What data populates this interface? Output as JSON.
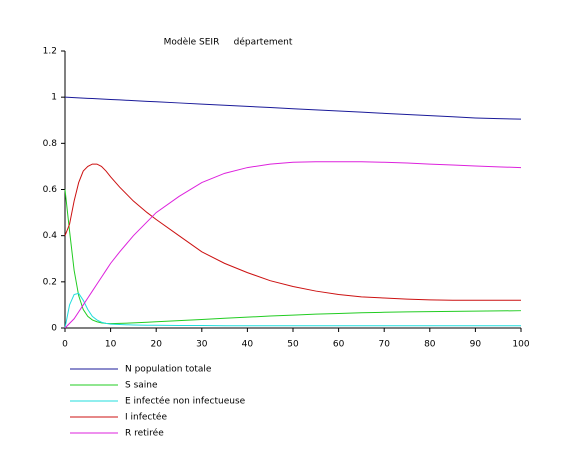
{
  "chart_data": {
    "type": "line",
    "title": "Modèle SEIR     département",
    "x": [
      0,
      1,
      2,
      3,
      4,
      5,
      6,
      7,
      8,
      9,
      10,
      12,
      15,
      18,
      20,
      25,
      30,
      35,
      40,
      45,
      50,
      55,
      60,
      65,
      70,
      75,
      80,
      85,
      90,
      95,
      100
    ],
    "series": [
      {
        "name": "N population totale",
        "color": "#1a1a99",
        "values": [
          1.0,
          0.999,
          0.998,
          0.997,
          0.996,
          0.995,
          0.994,
          0.993,
          0.992,
          0.991,
          0.99,
          0.988,
          0.985,
          0.982,
          0.98,
          0.975,
          0.97,
          0.965,
          0.96,
          0.955,
          0.95,
          0.945,
          0.94,
          0.935,
          0.93,
          0.925,
          0.92,
          0.915,
          0.91,
          0.907,
          0.905
        ]
      },
      {
        "name": "S saine",
        "color": "#22cc22",
        "values": [
          0.6,
          0.42,
          0.25,
          0.14,
          0.08,
          0.05,
          0.035,
          0.027,
          0.022,
          0.02,
          0.019,
          0.02,
          0.022,
          0.025,
          0.027,
          0.032,
          0.037,
          0.042,
          0.047,
          0.052,
          0.056,
          0.06,
          0.063,
          0.066,
          0.068,
          0.07,
          0.071,
          0.072,
          0.073,
          0.074,
          0.075
        ]
      },
      {
        "name": "E infectée non infectueuse",
        "color": "#22dddd",
        "values": [
          0,
          0.1,
          0.145,
          0.15,
          0.12,
          0.08,
          0.05,
          0.035,
          0.025,
          0.02,
          0.017,
          0.015,
          0.013,
          0.012,
          0.012,
          0.011,
          0.011,
          0.01,
          0.01,
          0.01,
          0.01,
          0.01,
          0.01,
          0.01,
          0.01,
          0.01,
          0.01,
          0.01,
          0.01,
          0.01,
          0.01
        ]
      },
      {
        "name": "I infectée",
        "color": "#cc1111",
        "values": [
          0.4,
          0.45,
          0.55,
          0.63,
          0.68,
          0.7,
          0.71,
          0.71,
          0.7,
          0.68,
          0.655,
          0.61,
          0.55,
          0.5,
          0.47,
          0.4,
          0.33,
          0.28,
          0.24,
          0.205,
          0.18,
          0.16,
          0.145,
          0.135,
          0.13,
          0.125,
          0.122,
          0.12,
          0.12,
          0.12,
          0.12
        ]
      },
      {
        "name": "R retirée",
        "color": "#dd22dd",
        "values": [
          0,
          0.02,
          0.04,
          0.07,
          0.1,
          0.13,
          0.16,
          0.19,
          0.22,
          0.25,
          0.28,
          0.33,
          0.4,
          0.46,
          0.5,
          0.57,
          0.63,
          0.67,
          0.695,
          0.71,
          0.718,
          0.72,
          0.72,
          0.72,
          0.718,
          0.715,
          0.71,
          0.706,
          0.702,
          0.698,
          0.695
        ]
      }
    ],
    "xlim": [
      0,
      100
    ],
    "xticks": [
      0,
      10,
      20,
      30,
      40,
      50,
      60,
      70,
      80,
      90,
      100
    ],
    "ylim": [
      0,
      1.2
    ],
    "yticks": [
      0,
      0.2,
      0.4,
      0.6,
      0.8,
      1,
      1.2
    ]
  }
}
